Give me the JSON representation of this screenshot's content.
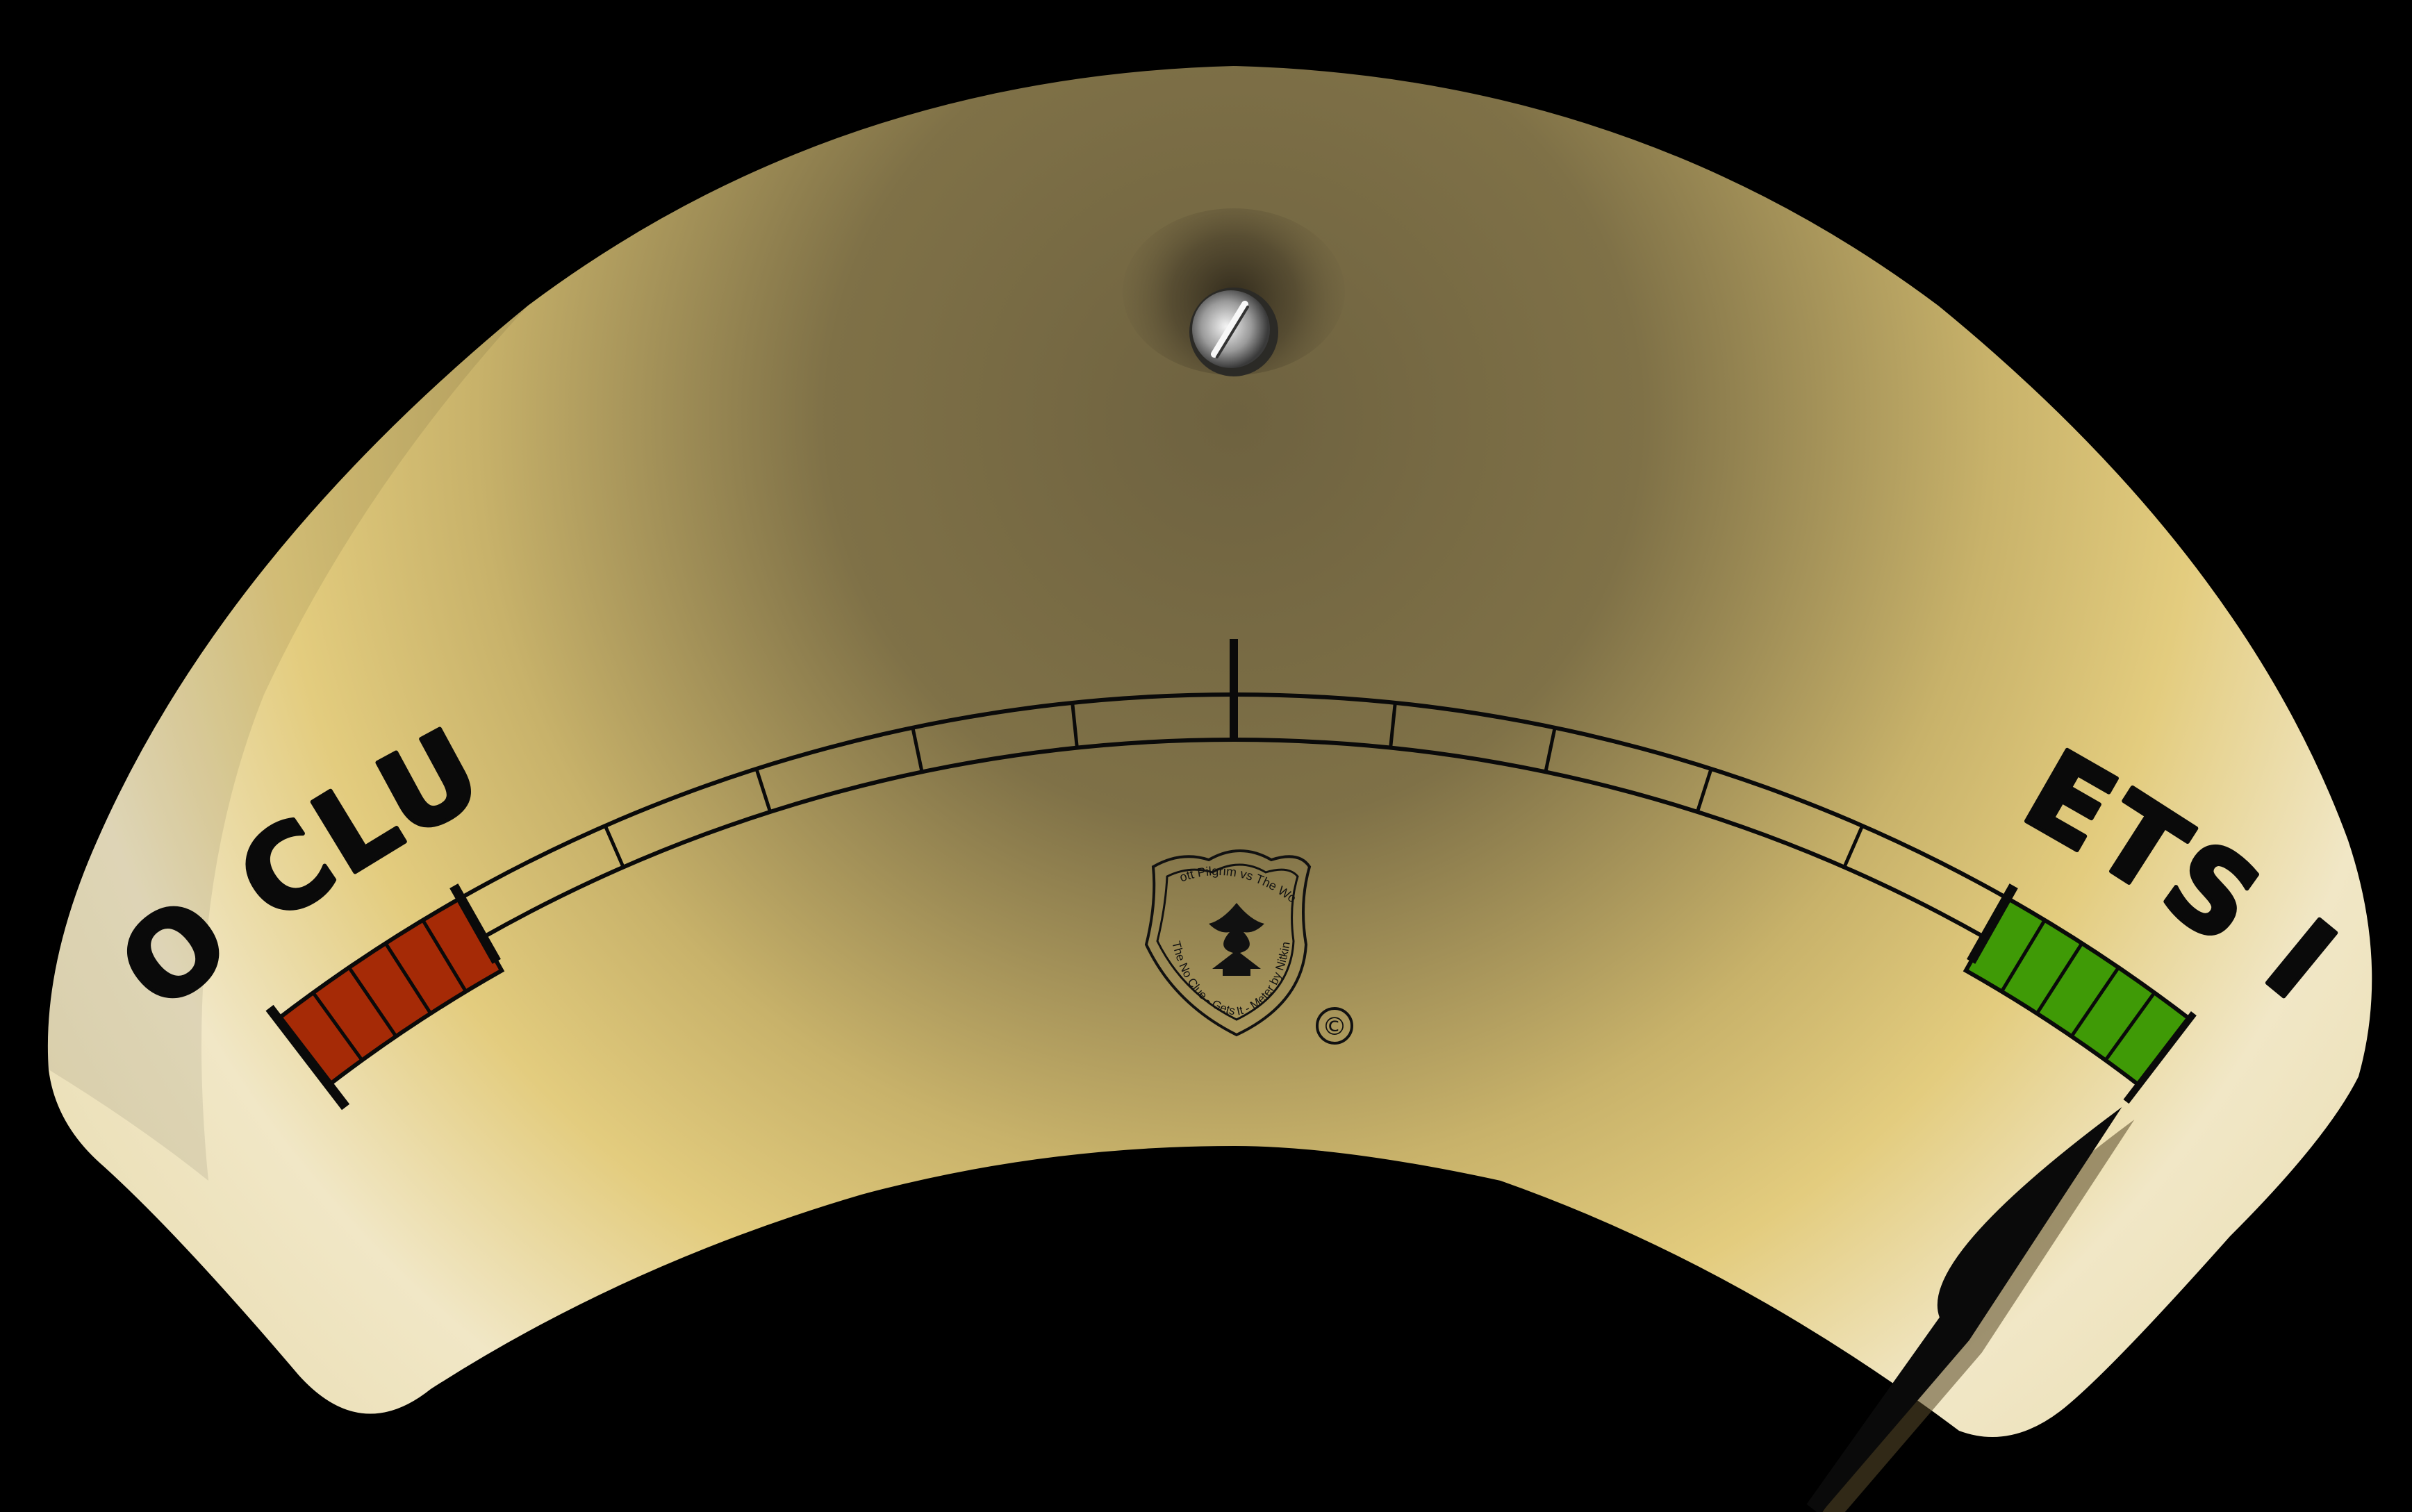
{
  "gauge": {
    "left_label": "NO CLUE",
    "right_label": "GETS IT",
    "badge_text_top": "Scott Pilgrim vs The World",
    "badge_text_bottom": "The No Clue - Gets It - Meter by Nitkin",
    "copyright_symbol": "©",
    "needle_fraction": 1.0,
    "colors": {
      "face_light": "#f0e3b3",
      "face_gold": "#e3cc7e",
      "face_dark": "#7a6c43",
      "no_clue_zone": "#a52a06",
      "gets_it_zone": "#3f9a06",
      "ink": "#0a0a0a"
    },
    "icons": [
      "screw-icon",
      "badge-emblem-icon",
      "needle-icon"
    ]
  }
}
